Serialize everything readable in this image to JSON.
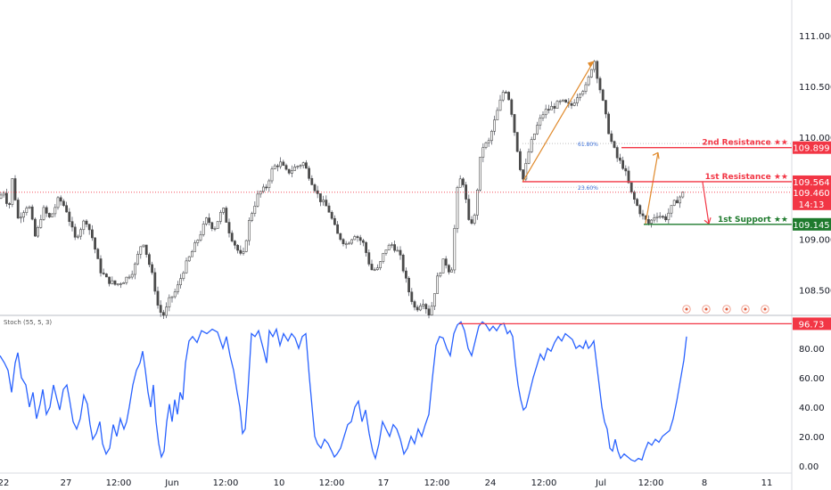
{
  "chart_data": {
    "type": "candlestick",
    "price_axis": {
      "ticks": [
        "111.000",
        "110.500",
        "110.000",
        "109.000",
        "108.500"
      ],
      "tick_values": [
        111.0,
        110.5,
        110.0,
        109.0,
        108.5
      ],
      "ylim": [
        108.25,
        111.35
      ]
    },
    "x_axis": {
      "ticks": [
        "22",
        "27",
        "12:00",
        "Jun",
        "12:00",
        "10",
        "12:00",
        "17",
        "12:00",
        "24",
        "12:00",
        "Jul",
        "12:00",
        "8",
        "11"
      ]
    },
    "price_path": [
      [
        0,
        109.4
      ],
      [
        3,
        109.5
      ],
      [
        10,
        109.3
      ],
      [
        14,
        109.6
      ],
      [
        20,
        109.2
      ],
      [
        32,
        109.35
      ],
      [
        40,
        109.0
      ],
      [
        48,
        109.3
      ],
      [
        56,
        109.2
      ],
      [
        66,
        109.4
      ],
      [
        74,
        109.3
      ],
      [
        84,
        109.0
      ],
      [
        96,
        109.2
      ],
      [
        104,
        109.0
      ],
      [
        112,
        108.7
      ],
      [
        120,
        108.6
      ],
      [
        130,
        108.55
      ],
      [
        140,
        108.6
      ],
      [
        150,
        108.7
      ],
      [
        160,
        109.0
      ],
      [
        166,
        108.8
      ],
      [
        172,
        108.6
      ],
      [
        178,
        108.3
      ],
      [
        184,
        108.25
      ],
      [
        190,
        108.4
      ],
      [
        198,
        108.5
      ],
      [
        206,
        108.7
      ],
      [
        214,
        108.85
      ],
      [
        222,
        109.0
      ],
      [
        232,
        109.2
      ],
      [
        240,
        109.1
      ],
      [
        250,
        109.3
      ],
      [
        258,
        109.05
      ],
      [
        266,
        108.9
      ],
      [
        272,
        108.8
      ],
      [
        280,
        109.2
      ],
      [
        290,
        109.45
      ],
      [
        298,
        109.5
      ],
      [
        306,
        109.7
      ],
      [
        314,
        109.75
      ],
      [
        322,
        109.65
      ],
      [
        330,
        109.7
      ],
      [
        340,
        109.75
      ],
      [
        348,
        109.6
      ],
      [
        358,
        109.4
      ],
      [
        368,
        109.3
      ],
      [
        378,
        109.05
      ],
      [
        388,
        108.95
      ],
      [
        398,
        109.05
      ],
      [
        408,
        108.95
      ],
      [
        416,
        108.7
      ],
      [
        424,
        108.7
      ],
      [
        432,
        108.9
      ],
      [
        440,
        108.95
      ],
      [
        448,
        108.85
      ],
      [
        458,
        108.5
      ],
      [
        466,
        108.3
      ],
      [
        474,
        108.4
      ],
      [
        482,
        108.25
      ],
      [
        490,
        108.6
      ],
      [
        498,
        108.8
      ],
      [
        506,
        108.65
      ],
      [
        514,
        109.6
      ],
      [
        520,
        109.55
      ],
      [
        526,
        109.15
      ],
      [
        532,
        109.2
      ],
      [
        540,
        109.9
      ],
      [
        548,
        109.95
      ],
      [
        556,
        110.2
      ],
      [
        566,
        110.5
      ],
      [
        572,
        110.35
      ],
      [
        578,
        110.0
      ],
      [
        586,
        109.564
      ],
      [
        594,
        109.9
      ],
      [
        602,
        110.1
      ],
      [
        610,
        110.25
      ],
      [
        620,
        110.3
      ],
      [
        630,
        110.35
      ],
      [
        640,
        110.3
      ],
      [
        650,
        110.45
      ],
      [
        658,
        110.5
      ],
      [
        666,
        110.78
      ],
      [
        670,
        110.6
      ],
      [
        676,
        110.35
      ],
      [
        684,
        110.0
      ],
      [
        692,
        109.8
      ],
      [
        700,
        109.7
      ],
      [
        708,
        109.45
      ],
      [
        716,
        109.3
      ],
      [
        722,
        109.2
      ],
      [
        728,
        109.15
      ],
      [
        736,
        109.25
      ],
      [
        746,
        109.2
      ],
      [
        756,
        109.35
      ],
      [
        766,
        109.45
      ]
    ],
    "levels": [
      {
        "label": "2nd Resistance ★★",
        "value": "109.899",
        "price": 109.899,
        "color": "#f23645"
      },
      {
        "label": "1st Resistance ★★",
        "value": "109.564",
        "price": 109.564,
        "color": "#f23645"
      },
      {
        "label": "1st Support ★★",
        "value": "109.145",
        "price": 109.145,
        "color": "#1e7a2d"
      }
    ],
    "last_price": {
      "value": "109.460",
      "price": 109.46,
      "countdown": "14:13",
      "color": "#f23645"
    },
    "fib_levels": [
      {
        "label": "61.80%",
        "price": 109.94
      },
      {
        "label": "23.60%",
        "price": 109.51
      }
    ],
    "stochastic": {
      "title": "Stoch (55, 5, 3)",
      "ticks": [
        "80.00",
        "60.00",
        "40.00",
        "20.00",
        "0.00"
      ],
      "tick_values": [
        80,
        60,
        40,
        20,
        0
      ],
      "ylim": [
        -5,
        100
      ],
      "marker": {
        "value": "96.73",
        "level": 96.73,
        "color": "#f23645"
      },
      "line_color": "#2962ff",
      "path": [
        [
          0,
          75
        ],
        [
          5,
          70
        ],
        [
          9,
          65
        ],
        [
          13,
          50
        ],
        [
          17,
          70
        ],
        [
          20,
          77
        ],
        [
          24,
          60
        ],
        [
          29,
          55
        ],
        [
          33,
          40
        ],
        [
          37,
          50
        ],
        [
          41,
          32
        ],
        [
          45,
          42
        ],
        [
          48,
          52
        ],
        [
          52,
          35
        ],
        [
          56,
          40
        ],
        [
          60,
          55
        ],
        [
          64,
          45
        ],
        [
          67,
          38
        ],
        [
          71,
          52
        ],
        [
          75,
          55
        ],
        [
          78,
          45
        ],
        [
          82,
          30
        ],
        [
          86,
          25
        ],
        [
          90,
          32
        ],
        [
          94,
          48
        ],
        [
          98,
          42
        ],
        [
          101,
          28
        ],
        [
          104,
          18
        ],
        [
          108,
          22
        ],
        [
          112,
          30
        ],
        [
          115,
          15
        ],
        [
          119,
          8
        ],
        [
          123,
          12
        ],
        [
          127,
          28
        ],
        [
          131,
          20
        ],
        [
          135,
          32
        ],
        [
          139,
          25
        ],
        [
          142,
          30
        ],
        [
          145,
          40
        ],
        [
          149,
          55
        ],
        [
          153,
          65
        ],
        [
          157,
          70
        ],
        [
          160,
          78
        ],
        [
          163,
          65
        ],
        [
          166,
          50
        ],
        [
          169,
          40
        ],
        [
          172,
          55
        ],
        [
          175,
          30
        ],
        [
          178,
          15
        ],
        [
          181,
          6
        ],
        [
          184,
          10
        ],
        [
          187,
          30
        ],
        [
          190,
          42
        ],
        [
          193,
          30
        ],
        [
          196,
          45
        ],
        [
          199,
          35
        ],
        [
          202,
          50
        ],
        [
          205,
          45
        ],
        [
          208,
          70
        ],
        [
          212,
          85
        ],
        [
          216,
          88
        ],
        [
          221,
          84
        ],
        [
          226,
          92
        ],
        [
          232,
          90
        ],
        [
          238,
          93
        ],
        [
          244,
          91
        ],
        [
          250,
          80
        ],
        [
          254,
          88
        ],
        [
          258,
          75
        ],
        [
          262,
          65
        ],
        [
          266,
          50
        ],
        [
          269,
          40
        ],
        [
          272,
          22
        ],
        [
          275,
          25
        ],
        [
          278,
          50
        ],
        [
          282,
          90
        ],
        [
          286,
          88
        ],
        [
          290,
          92
        ],
        [
          293,
          85
        ],
        [
          296,
          78
        ],
        [
          299,
          70
        ],
        [
          302,
          92
        ],
        [
          306,
          88
        ],
        [
          310,
          93
        ],
        [
          314,
          82
        ],
        [
          318,
          90
        ],
        [
          323,
          85
        ],
        [
          327,
          90
        ],
        [
          331,
          87
        ],
        [
          335,
          80
        ],
        [
          339,
          88
        ],
        [
          343,
          90
        ],
        [
          347,
          60
        ],
        [
          350,
          40
        ],
        [
          353,
          20
        ],
        [
          356,
          15
        ],
        [
          360,
          12
        ],
        [
          364,
          18
        ],
        [
          368,
          15
        ],
        [
          372,
          10
        ],
        [
          375,
          6
        ],
        [
          378,
          8
        ],
        [
          382,
          12
        ],
        [
          386,
          20
        ],
        [
          390,
          28
        ],
        [
          394,
          30
        ],
        [
          398,
          40
        ],
        [
          402,
          44
        ],
        [
          406,
          30
        ],
        [
          410,
          38
        ],
        [
          414,
          22
        ],
        [
          418,
          10
        ],
        [
          421,
          5
        ],
        [
          425,
          15
        ],
        [
          429,
          30
        ],
        [
          433,
          25
        ],
        [
          437,
          20
        ],
        [
          441,
          28
        ],
        [
          445,
          25
        ],
        [
          449,
          18
        ],
        [
          453,
          8
        ],
        [
          457,
          12
        ],
        [
          461,
          20
        ],
        [
          465,
          15
        ],
        [
          469,
          25
        ],
        [
          473,
          20
        ],
        [
          477,
          28
        ],
        [
          481,
          35
        ],
        [
          485,
          60
        ],
        [
          489,
          82
        ],
        [
          493,
          88
        ],
        [
          497,
          87
        ],
        [
          501,
          80
        ],
        [
          505,
          75
        ],
        [
          509,
          90
        ],
        [
          513,
          96
        ],
        [
          517,
          98
        ],
        [
          521,
          92
        ],
        [
          525,
          80
        ],
        [
          529,
          75
        ],
        [
          533,
          85
        ],
        [
          537,
          95
        ],
        [
          541,
          98
        ],
        [
          545,
          96
        ],
        [
          549,
          92
        ],
        [
          553,
          95
        ],
        [
          557,
          92
        ],
        [
          561,
          96
        ],
        [
          565,
          97
        ],
        [
          569,
          90
        ],
        [
          572,
          92
        ],
        [
          575,
          88
        ],
        [
          578,
          70
        ],
        [
          581,
          55
        ],
        [
          584,
          45
        ],
        [
          587,
          38
        ],
        [
          590,
          40
        ],
        [
          594,
          50
        ],
        [
          598,
          60
        ],
        [
          602,
          68
        ],
        [
          606,
          76
        ],
        [
          610,
          72
        ],
        [
          614,
          80
        ],
        [
          618,
          78
        ],
        [
          622,
          84
        ],
        [
          626,
          88
        ],
        [
          630,
          85
        ],
        [
          634,
          90
        ],
        [
          638,
          88
        ],
        [
          642,
          86
        ],
        [
          646,
          80
        ],
        [
          650,
          82
        ],
        [
          654,
          80
        ],
        [
          657,
          85
        ],
        [
          660,
          80
        ],
        [
          663,
          82
        ],
        [
          666,
          85
        ],
        [
          669,
          70
        ],
        [
          672,
          55
        ],
        [
          675,
          40
        ],
        [
          678,
          30
        ],
        [
          681,
          25
        ],
        [
          684,
          12
        ],
        [
          687,
          10
        ],
        [
          690,
          18
        ],
        [
          693,
          10
        ],
        [
          696,
          5
        ],
        [
          700,
          8
        ],
        [
          704,
          6
        ],
        [
          708,
          4
        ],
        [
          712,
          3
        ],
        [
          716,
          5
        ],
        [
          720,
          4
        ],
        [
          723,
          10
        ],
        [
          727,
          16
        ],
        [
          731,
          14
        ],
        [
          735,
          18
        ],
        [
          739,
          16
        ],
        [
          743,
          20
        ],
        [
          747,
          22
        ],
        [
          751,
          24
        ],
        [
          755,
          32
        ],
        [
          759,
          44
        ],
        [
          763,
          58
        ],
        [
          767,
          72
        ],
        [
          770,
          88
        ]
      ]
    },
    "projection_arrows": [
      {
        "direction": "up",
        "color": "#e08a2c"
      },
      {
        "direction": "down",
        "color": "#f23645"
      }
    ],
    "event_markers": 5
  }
}
